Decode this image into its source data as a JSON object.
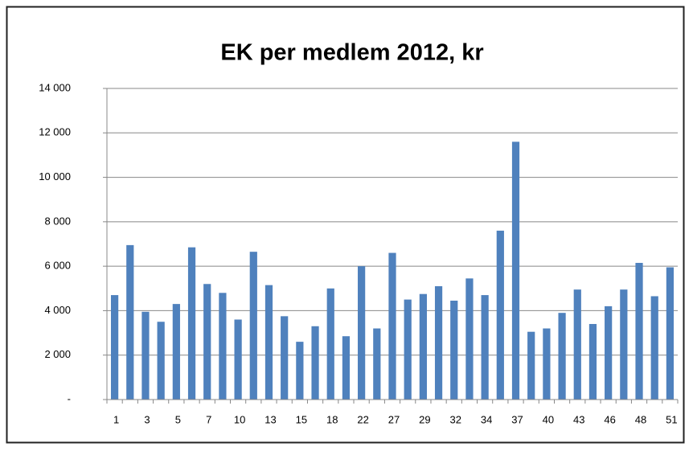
{
  "chart_data": {
    "type": "bar",
    "title": "EK per medlem 2012, kr",
    "categories": [
      "1",
      null,
      "3",
      null,
      "5",
      null,
      "7",
      null,
      "10",
      null,
      "13",
      null,
      "15",
      null,
      "18",
      null,
      "22",
      null,
      "27",
      null,
      "29",
      null,
      "32",
      null,
      "34",
      null,
      "37",
      null,
      "40",
      null,
      "43",
      null,
      "46",
      null,
      "48",
      null,
      "51"
    ],
    "values": [
      4700,
      6950,
      3950,
      3500,
      4300,
      6850,
      5200,
      4800,
      3600,
      6650,
      5150,
      3750,
      2600,
      3300,
      5000,
      2850,
      6000,
      3200,
      6600,
      4500,
      4750,
      5100,
      4450,
      5450,
      4700,
      7600,
      11600,
      3050,
      3200,
      3900,
      4950,
      3400,
      4200,
      4950,
      6150,
      4650,
      5950
    ],
    "color": "#4f81bd",
    "ylim": [
      0,
      14000
    ],
    "yticks": [
      {
        "value": 0,
        "label": "-"
      },
      {
        "value": 2000,
        "label": "2 000"
      },
      {
        "value": 4000,
        "label": "4 000"
      },
      {
        "value": 6000,
        "label": "6 000"
      },
      {
        "value": 8000,
        "label": "8 000"
      },
      {
        "value": 10000,
        "label": "10 000"
      },
      {
        "value": 12000,
        "label": "12 000"
      },
      {
        "value": 14000,
        "label": "14 000"
      }
    ],
    "grid": true
  }
}
